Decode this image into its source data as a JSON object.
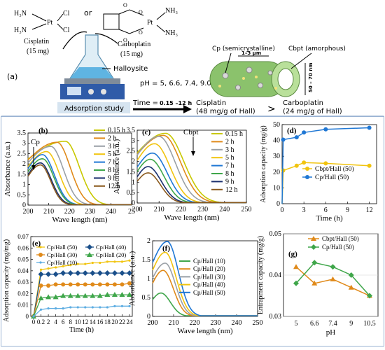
{
  "top": {
    "cisplatin": {
      "name": "Cisplatin",
      "mass": "(15 mg)",
      "f1": "H₃N",
      "f2": "H₃N",
      "pt": "Pt",
      "cl1": "Cl",
      "cl2": "Cl"
    },
    "or": "or",
    "carboplatin": {
      "name": "Carboplatin",
      "mass": "(15 mg)",
      "nh1": "NH₃",
      "nh2": "NH₃",
      "pt": "Pt"
    },
    "halloysite": "Halloysite",
    "panel_label": "(a)",
    "ph": "pH = 5, 6.6, 7.4, 9.0 and 10.5",
    "time_label": "Time =",
    "time_value": "0.15 –12 h",
    "adsorption_study": "Adsorption study",
    "cp_label": "Cp (semicrystalline)",
    "cbpt_label": "Cbpt (amorphous)",
    "length": "1–3 μm",
    "diameter": "50 – 70 nm",
    "result_cis_1": "Cisplatin",
    "result_cis_2": "(48 mg/g of Hall)",
    "gt": ">",
    "result_carbo_1": "Carboplatin",
    "result_carbo_2": "(24 mg/g of Hall)"
  },
  "chart_data": [
    {
      "id": "b",
      "type": "line",
      "panel": "(b)",
      "annotation": "Cp",
      "xlabel": "Wave  length (nm)",
      "ylabel": "Absorbance (a.u.)",
      "xlim": [
        200,
        250
      ],
      "ylim": [
        0,
        3.5
      ],
      "xticks": [
        "200",
        "210",
        "220",
        "230",
        "240",
        "25"
      ],
      "yticks": [
        "0",
        "0.5",
        "1",
        "1.5",
        "2",
        "2.5",
        "3",
        "3.5"
      ],
      "series": [
        {
          "name": "0.15 h",
          "color": "#c8c800",
          "peak": 3.1,
          "center": 218,
          "w": 9.0
        },
        {
          "name": "2 h",
          "color": "#e08a1a",
          "peak": 3.05,
          "center": 214,
          "w": 8.5
        },
        {
          "name": "3 h",
          "color": "#9aa0a6",
          "peak": 2.85,
          "center": 211,
          "w": 8.2
        },
        {
          "name": "5 h",
          "color": "#f1c40f",
          "peak": 2.6,
          "center": 209,
          "w": 8.0
        },
        {
          "name": "7 h",
          "color": "#1f77d4",
          "peak": 2.45,
          "center": 207,
          "w": 7.6
        },
        {
          "name": "8 h",
          "color": "#3fa64a",
          "peak": 2.25,
          "center": 207,
          "w": 7.3
        },
        {
          "name": "9 h",
          "color": "#1a2f6e",
          "peak": 2.05,
          "center": 206,
          "w": 7.0
        },
        {
          "name": "12 h",
          "color": "#8a5a1e",
          "peak": 1.95,
          "center": 206,
          "w": 6.6
        }
      ]
    },
    {
      "id": "c",
      "type": "line",
      "panel": "(c)",
      "annotation": "Cbpt",
      "xlabel": "Wave length (nm)",
      "ylabel": "Absorbance (a.u.)",
      "xlim": [
        200,
        250
      ],
      "ylim": [
        0,
        3.5
      ],
      "xticks": [
        "200",
        "210",
        "220",
        "230",
        "240",
        "250"
      ],
      "yticks": [
        "0",
        "0.5",
        "1",
        "1.5",
        "2",
        "2.5",
        "3",
        "3.5"
      ],
      "series": [
        {
          "name": "0.15 h",
          "color": "#c8c800",
          "peak": 3.35,
          "center": 213,
          "w": 11
        },
        {
          "name": "2 h",
          "color": "#e08a1a",
          "peak": 3.25,
          "center": 212,
          "w": 10.5
        },
        {
          "name": "3 h",
          "color": "#9aa0a6",
          "peak": 3.2,
          "center": 210,
          "w": 10
        },
        {
          "name": "5 h",
          "color": "#f1c40f",
          "peak": 2.85,
          "center": 208,
          "w": 9.5
        },
        {
          "name": "7 h",
          "color": "#1f77d4",
          "peak": 2.4,
          "center": 207,
          "w": 9
        },
        {
          "name": "8 h",
          "color": "#3fa64a",
          "peak": 2.1,
          "center": 206,
          "w": 8.5
        },
        {
          "name": "9 h",
          "color": "#1a2f6e",
          "peak": 1.75,
          "center": 205,
          "w": 8
        },
        {
          "name": "12 h",
          "color": "#8a5a1e",
          "peak": 1.45,
          "center": 205,
          "w": 7.5
        }
      ]
    },
    {
      "id": "d",
      "type": "line",
      "panel": "(d)",
      "xlabel": "Time (h)",
      "ylabel": "Adsorption capacity (mg/g)",
      "xlim": [
        0,
        13
      ],
      "ylim": [
        0,
        50
      ],
      "xticks": [
        0,
        3,
        6,
        9,
        12
      ],
      "yticks": [
        0,
        10,
        20,
        30,
        40,
        50
      ],
      "series": [
        {
          "name": "Cbpt/Hall (50)",
          "color": "#f1c40f",
          "x": [
            0.15,
            2,
            3,
            6,
            12
          ],
          "y": [
            21,
            24,
            26,
            25.5,
            24
          ]
        },
        {
          "name": "Cp/Hall (50)",
          "color": "#1f77d4",
          "x": [
            0.15,
            2,
            3,
            6,
            12
          ],
          "y": [
            40.5,
            42,
            45,
            47,
            48
          ]
        }
      ]
    },
    {
      "id": "e",
      "type": "line",
      "panel": "(e)",
      "xlabel": "Time (h)",
      "ylabel": "Adsorption capacity (mg/mg)",
      "xlim": [
        0,
        24
      ],
      "ylim": [
        0,
        0.07
      ],
      "xticks": [
        "0",
        "0.2",
        "2",
        "4",
        "6",
        "8",
        "10",
        "12",
        "14",
        "16",
        "18",
        "20",
        "22",
        "24"
      ],
      "yticks": [
        "0",
        "0.01",
        "0.02",
        "0.03",
        "0.04",
        "0.05",
        "0.06",
        "0.07"
      ],
      "series": [
        {
          "name": "Cp/Hall (50)",
          "color": "#f1c40f",
          "marker": "line",
          "y": [
            0,
            0.041,
            0.042,
            0.043,
            0.044,
            0.045,
            0.046,
            0.046,
            0.047,
            0.047,
            0.048,
            0.048,
            0.048,
            0.049
          ]
        },
        {
          "name": "Cp/Hall (40)",
          "color": "#1a4f8a",
          "marker": "diamond",
          "y": [
            0,
            0.037,
            0.037,
            0.037,
            0.038,
            0.038,
            0.038,
            0.038,
            0.038,
            0.038,
            0.038,
            0.038,
            0.038,
            0.038
          ]
        },
        {
          "name": "Cp/Hall (30)",
          "color": "#e08a1a",
          "marker": "circle",
          "y": [
            0,
            0.027,
            0.027,
            0.028,
            0.028,
            0.028,
            0.028,
            0.028,
            0.028,
            0.028,
            0.028,
            0.028,
            0.028,
            0.029
          ]
        },
        {
          "name": "Cp/Hall (20)",
          "color": "#3fa64a",
          "marker": "triangle",
          "y": [
            0,
            0.016,
            0.017,
            0.017,
            0.018,
            0.018,
            0.018,
            0.018,
            0.018,
            0.018,
            0.019,
            0.019,
            0.019,
            0.019
          ]
        },
        {
          "name": "Cp/Hall (10)",
          "color": "#5dade2",
          "marker": "line",
          "y": [
            0,
            0.006,
            0.007,
            0.007,
            0.007,
            0.008,
            0.008,
            0.008,
            0.008,
            0.008,
            0.008,
            0.009,
            0.009,
            0.009
          ]
        }
      ]
    },
    {
      "id": "f",
      "type": "line",
      "panel": "(f)",
      "xlabel": "Wave length (nm)",
      "ylabel": "Absorbance (a.u.)",
      "xlim": [
        200,
        250
      ],
      "ylim": [
        0,
        2.1
      ],
      "xticks": [
        "200",
        "210",
        "220",
        "230",
        "240",
        "250"
      ],
      "yticks": [
        "0",
        "0.5",
        "1",
        "1.5",
        "2"
      ],
      "series": [
        {
          "name": "Cp/Hall (10)",
          "color": "#3fa64a",
          "peak": 0.65,
          "center": 204,
          "w": 6
        },
        {
          "name": "Cp/Hall (20)",
          "color": "#e08a1a",
          "peak": 1.28,
          "center": 205,
          "w": 6.5
        },
        {
          "name": "Cp/Hall (30)",
          "color": "#9aa0a6",
          "peak": 1.48,
          "center": 206,
          "w": 6.5
        },
        {
          "name": "Cp/Hall (40)",
          "color": "#f1c40f",
          "peak": 1.78,
          "center": 206,
          "w": 7
        },
        {
          "name": "Cp/Hall (50)",
          "color": "#1f77d4",
          "peak": 2.08,
          "center": 207,
          "w": 7
        }
      ]
    },
    {
      "id": "g",
      "type": "line",
      "panel": "(g)",
      "xlabel": "pH",
      "ylabel": "Entrapment capacity (mg/g)",
      "categories": [
        "5",
        "6.6",
        "7.4",
        "9",
        "10.5"
      ],
      "ylim": [
        0.03,
        0.05
      ],
      "yticks": [
        "0.03",
        "0.04",
        "0.05"
      ],
      "series": [
        {
          "name": "Cbpt/Hall (50)",
          "color": "#e08a1a",
          "marker": "triangle",
          "y": [
            0.042,
            0.038,
            0.039,
            0.037,
            0.035
          ]
        },
        {
          "name": "Cp/Hall (50)",
          "color": "#3fa64a",
          "marker": "diamond",
          "y": [
            0.038,
            0.043,
            0.042,
            0.04,
            0.035
          ]
        }
      ]
    }
  ]
}
